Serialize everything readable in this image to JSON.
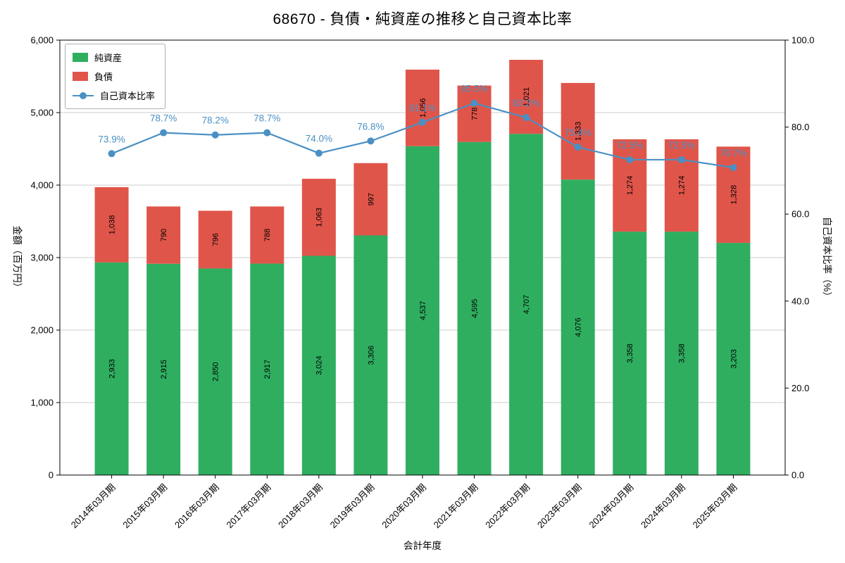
{
  "chart_data": {
    "type": "bar",
    "subtype": "stacked-bar-with-line",
    "title": "68670 - 負債・純資産の推移と自己資本比率",
    "xlabel": "会計年度",
    "ylabel_left": "金額（百万円）",
    "ylabel_right": "自己資本比率（%）",
    "ylim_left": [
      0,
      6000
    ],
    "ylim_right": [
      0,
      100
    ],
    "grid": "horizontal",
    "legend_position": "upper-left",
    "categories": [
      "2014年03月期",
      "2015年03月期",
      "2016年03月期",
      "2017年03月期",
      "2018年03月期",
      "2019年03月期",
      "2020年03月期",
      "2021年03月期",
      "2022年03月期",
      "2023年03月期",
      "2024年03月期",
      "2024年03月期",
      "2025年03月期"
    ],
    "series": [
      {
        "name": "純資産",
        "color": "#2fae60",
        "values": [
          2933,
          2915,
          2850,
          2917,
          3024,
          3306,
          4537,
          4595,
          4707,
          4076,
          3358,
          3358,
          3203
        ],
        "labels": [
          "2,933",
          "2,915",
          "2,850",
          "2,917",
          "3,024",
          "3,306",
          "4,537",
          "4,595",
          "4,707",
          "4,076",
          "3,358",
          "3,358",
          "3,203"
        ]
      },
      {
        "name": "負債",
        "color": "#e0554a",
        "values": [
          1038,
          790,
          796,
          788,
          1063,
          997,
          1056,
          778,
          1021,
          1333,
          1274,
          1274,
          1328
        ],
        "labels": [
          "1,038",
          "790",
          "796",
          "788",
          "1,063",
          "997",
          "1,056",
          "778",
          "1,021",
          "1,333",
          "1,274",
          "1,274",
          "1,328"
        ]
      }
    ],
    "line": {
      "name": "自己資本比率",
      "color": "#4a90c4",
      "values": [
        73.9,
        78.7,
        78.2,
        78.7,
        74.0,
        76.8,
        81.1,
        85.5,
        82.2,
        75.4,
        72.5,
        72.5,
        70.7
      ],
      "labels": [
        "73.9%",
        "78.7%",
        "78.2%",
        "78.7%",
        "74.0%",
        "76.8%",
        "81.1%",
        "85.5%",
        "82.2%",
        "75.4%",
        "72.5%",
        "72.5%",
        "70.7%"
      ]
    },
    "y_ticks_left": [
      "0",
      "1,000",
      "2,000",
      "3,000",
      "4,000",
      "5,000",
      "6,000"
    ],
    "y_ticks_right": [
      "0.0",
      "20.0",
      "40.0",
      "60.0",
      "80.0",
      "100.0"
    ],
    "grid_color": "#cccccc",
    "axis_color": "#000000"
  }
}
